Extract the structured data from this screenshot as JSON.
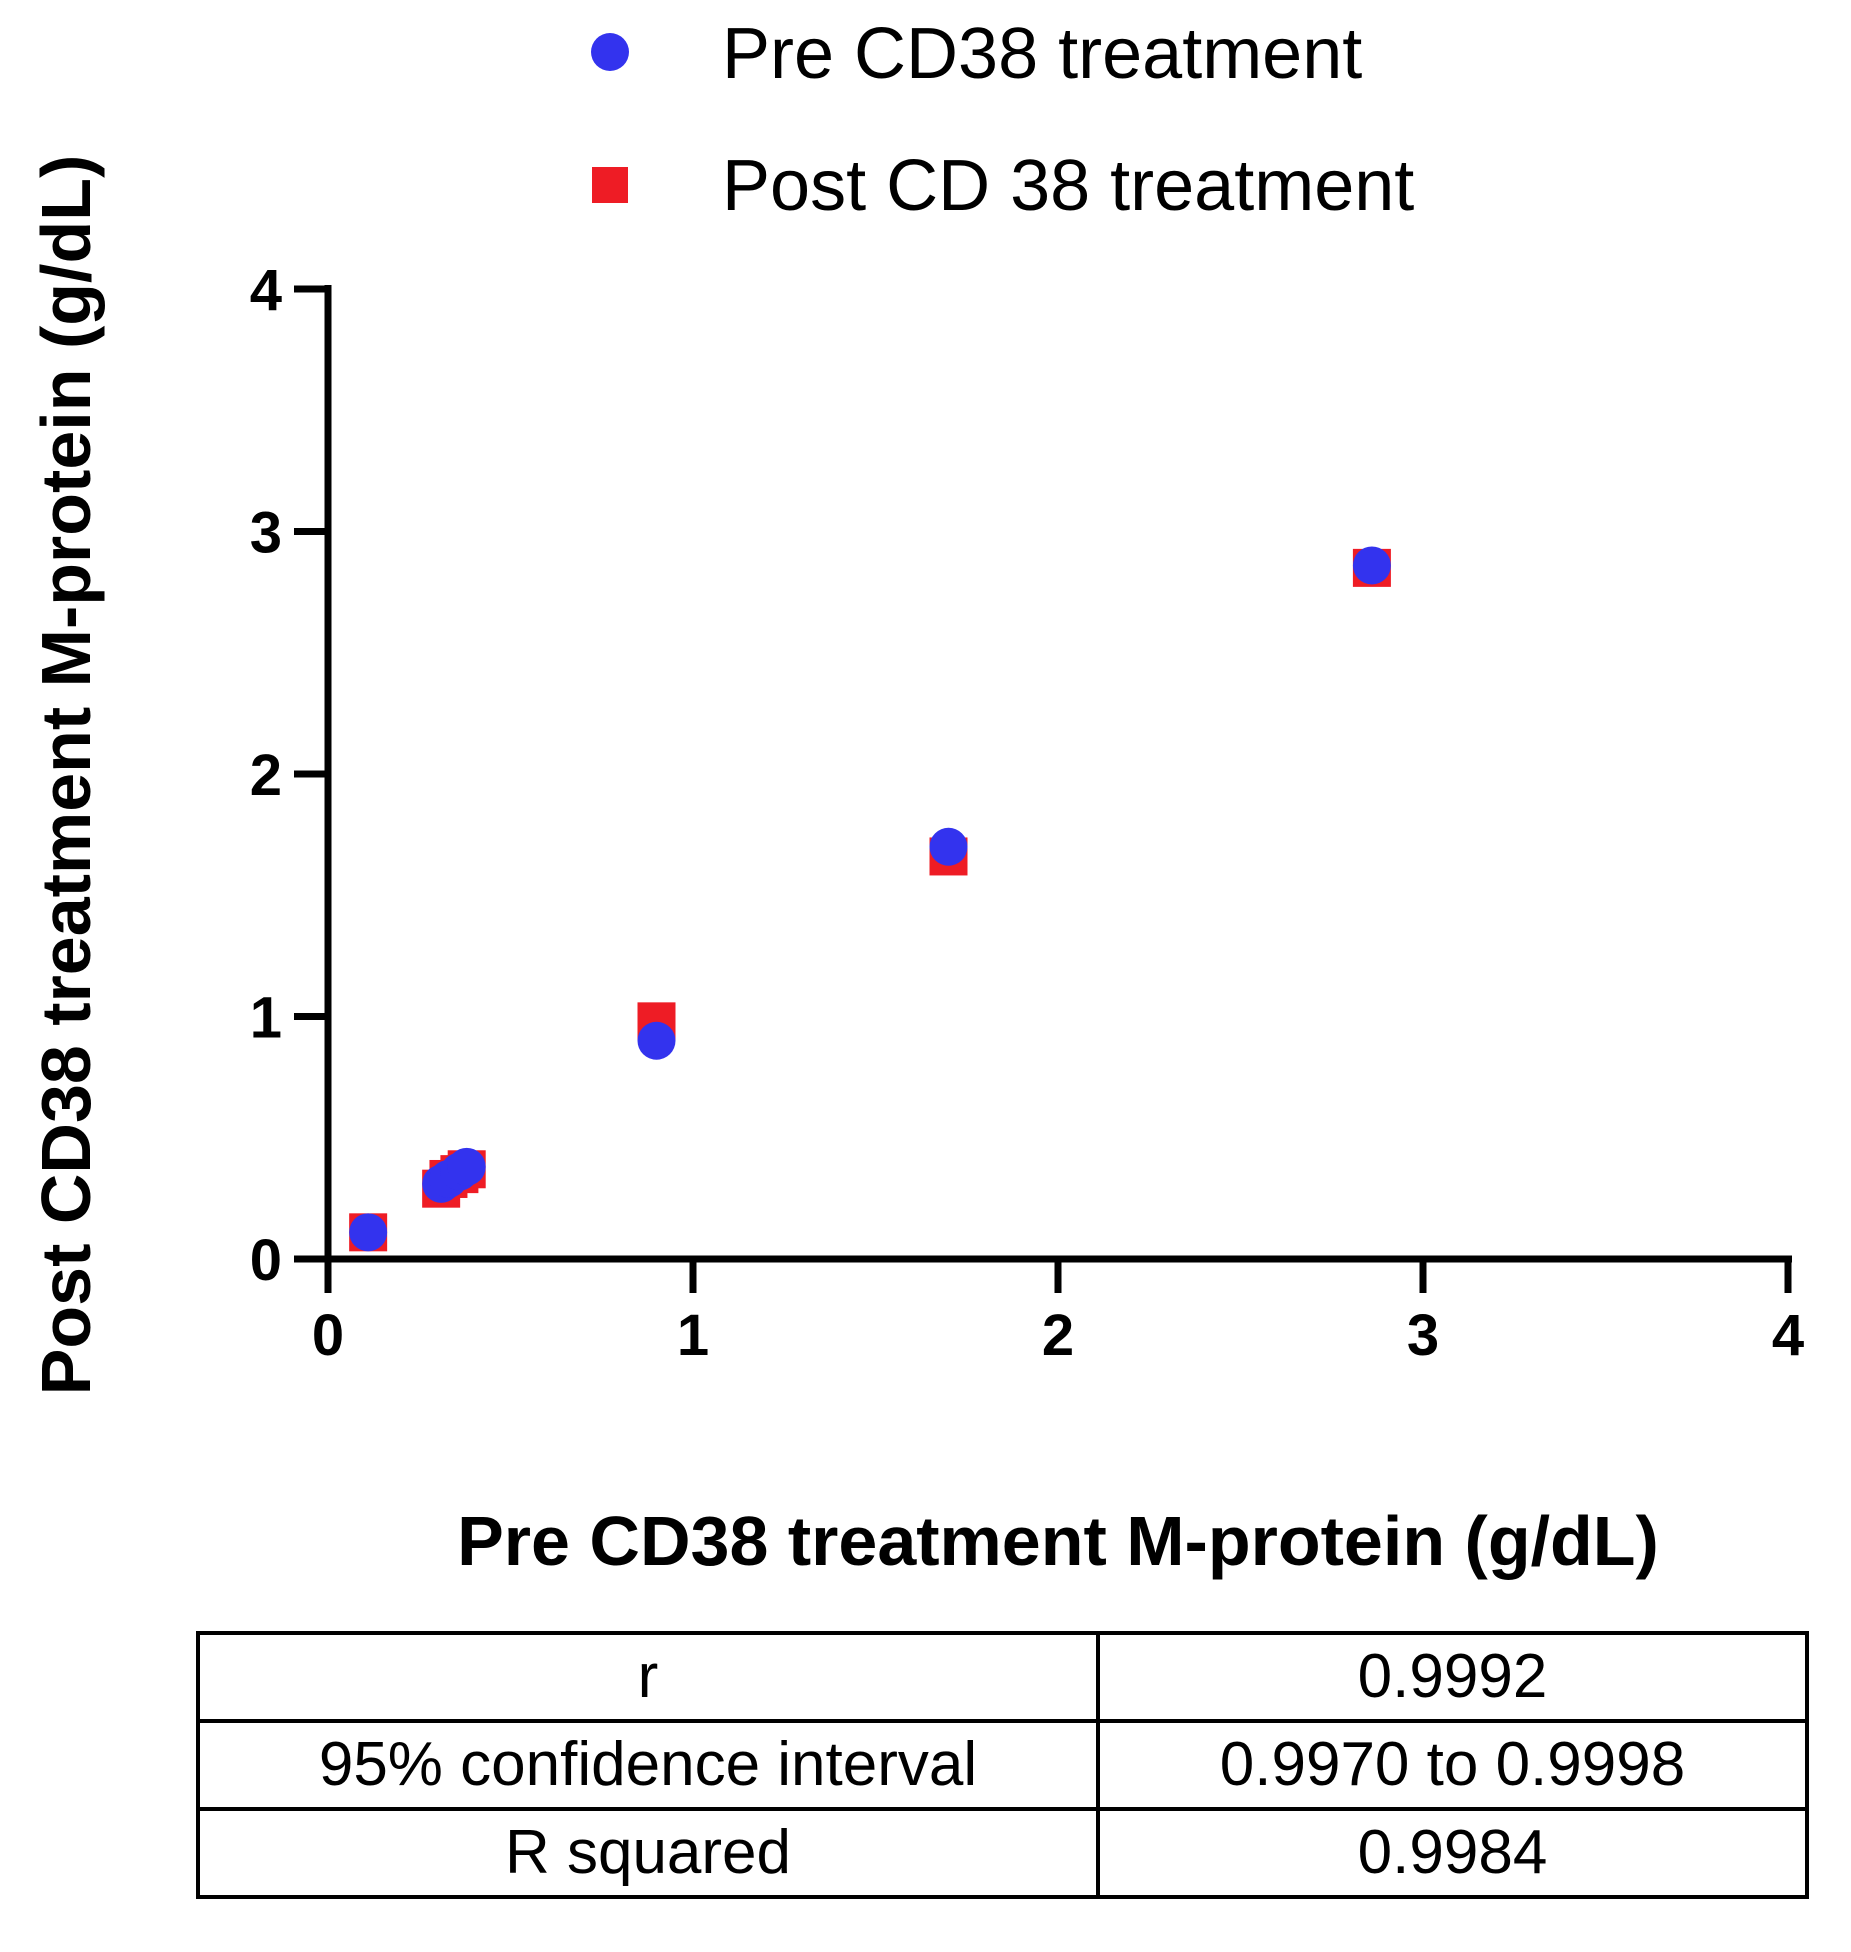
{
  "chart_data": {
    "type": "scatter",
    "xlabel": "Pre CD38 treatment M-protein (g/dL)",
    "ylabel": "Post CD38 treatment  M-protein (g/dL)",
    "xlim": [
      0,
      4
    ],
    "ylim": [
      0,
      4
    ],
    "xticks": [
      "0",
      "1",
      "2",
      "3",
      "4"
    ],
    "yticks": [
      "0",
      "1",
      "2",
      "3",
      "4"
    ],
    "grid": false,
    "legend_position": "top-center",
    "series": [
      {
        "name": "Post CD 38 treatment",
        "marker": "square",
        "color": "#ee1c25",
        "points": [
          {
            "x": 0.11,
            "y": 0.11
          },
          {
            "x": 0.31,
            "y": 0.29
          },
          {
            "x": 0.33,
            "y": 0.33
          },
          {
            "x": 0.36,
            "y": 0.35
          },
          {
            "x": 0.38,
            "y": 0.37
          },
          {
            "x": 0.9,
            "y": 0.98
          },
          {
            "x": 1.7,
            "y": 1.66
          },
          {
            "x": 2.86,
            "y": 2.85
          }
        ]
      },
      {
        "name": "Pre CD38 treatment",
        "marker": "circle",
        "color": "#3333ee",
        "points": [
          {
            "x": 0.11,
            "y": 0.11
          },
          {
            "x": 0.31,
            "y": 0.31
          },
          {
            "x": 0.33,
            "y": 0.33
          },
          {
            "x": 0.36,
            "y": 0.36
          },
          {
            "x": 0.38,
            "y": 0.38
          },
          {
            "x": 0.9,
            "y": 0.9
          },
          {
            "x": 1.7,
            "y": 1.7
          },
          {
            "x": 2.86,
            "y": 2.86
          }
        ]
      }
    ],
    "legend": [
      {
        "name": "Pre CD38 treatment",
        "marker": "circle",
        "color": "#3333ee"
      },
      {
        "name": "Post CD 38 treatment",
        "marker": "square",
        "color": "#ee1c25"
      }
    ]
  },
  "stats_table": {
    "rows": [
      {
        "label": "r",
        "value": "0.9992"
      },
      {
        "label": "95% confidence interval",
        "value": "0.9970 to 0.9998"
      },
      {
        "label": "R squared",
        "value": "0.9984"
      }
    ]
  }
}
